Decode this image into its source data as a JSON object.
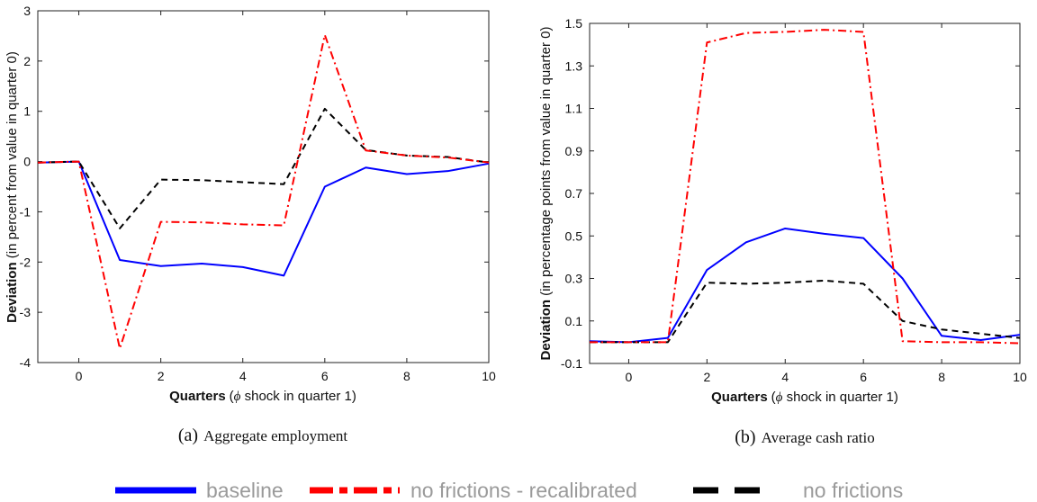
{
  "charts": [
    {
      "id": "a",
      "caption_letter": "(a)",
      "caption_text": "Aggregate employment",
      "ylabel_bold": "Deviation",
      "ylabel_rest": " (in percent from value in quarter 0)",
      "xlabel_bold": "Quarters",
      "xlabel_rest": " shock in quarter 1)",
      "xlabel_paren": "(",
      "xlabel_symbol": "ϕ",
      "xticks": [
        "0",
        "2",
        "4",
        "6",
        "8",
        "10"
      ],
      "yticks": [
        "3",
        "2",
        "1",
        "0",
        "-1",
        "-2",
        "-3",
        "-4"
      ]
    },
    {
      "id": "b",
      "caption_letter": "(b)",
      "caption_text": "Average cash ratio",
      "ylabel_bold": "Deviation",
      "ylabel_rest": " (in percentage points from value in quarter 0)",
      "xlabel_bold": "Quarters",
      "xlabel_rest": " shock in quarter 1)",
      "xlabel_paren": "(",
      "xlabel_symbol": "ϕ",
      "xticks": [
        "0",
        "2",
        "4",
        "6",
        "8",
        "10"
      ],
      "yticks": [
        "1.5",
        "1.3",
        "1.1",
        "0.9",
        "0.7",
        "0.5",
        "0.3",
        "0.1",
        "-0.1"
      ]
    }
  ],
  "legend": {
    "baseline": "baseline",
    "recal": "no frictions - recalibrated",
    "nofric": "no frictions"
  },
  "colors": {
    "baseline": "#0000ff",
    "recal": "#ff0000",
    "nofric": "#000000",
    "legend_text": "#9a9a9a"
  },
  "chart_data": [
    {
      "type": "line",
      "title": "Aggregate employment",
      "xlabel": "Quarters (ϕ shock in quarter 1)",
      "ylabel": "Deviation (in percent from value in quarter 0)",
      "xlim": [
        -1,
        10
      ],
      "ylim": [
        -4,
        3
      ],
      "x": [
        -1,
        0,
        1,
        2,
        3,
        4,
        5,
        6,
        7,
        8,
        9,
        10
      ],
      "series": [
        {
          "name": "baseline",
          "style": "solid",
          "color": "#0000ff",
          "values": [
            -0.02,
            0.0,
            -1.96,
            -2.08,
            -2.03,
            -2.1,
            -2.27,
            -0.5,
            -0.12,
            -0.25,
            -0.19,
            -0.04
          ]
        },
        {
          "name": "no frictions - recalibrated",
          "style": "dashdot",
          "color": "#ff0000",
          "values": [
            -0.02,
            0.0,
            -3.72,
            -1.2,
            -1.21,
            -1.25,
            -1.27,
            2.52,
            0.22,
            0.12,
            0.08,
            -0.02
          ]
        },
        {
          "name": "no frictions",
          "style": "dashed",
          "color": "#000000",
          "values": [
            -0.02,
            0.0,
            -1.33,
            -0.36,
            -0.37,
            -0.41,
            -0.45,
            1.05,
            0.23,
            0.12,
            0.09,
            -0.02
          ]
        }
      ]
    },
    {
      "type": "line",
      "title": "Average cash ratio",
      "xlabel": "Quarters (ϕ shock in quarter 1)",
      "ylabel": "Deviation (in percentage points from value in quarter 0)",
      "xlim": [
        -1,
        10
      ],
      "ylim": [
        -0.1,
        1.5
      ],
      "x": [
        -1,
        0,
        1,
        2,
        3,
        4,
        5,
        6,
        7,
        8,
        9,
        10
      ],
      "series": [
        {
          "name": "baseline",
          "style": "solid",
          "color": "#0000ff",
          "values": [
            0.005,
            0.0,
            0.02,
            0.34,
            0.47,
            0.535,
            0.51,
            0.49,
            0.3,
            0.03,
            0.01,
            0.035
          ]
        },
        {
          "name": "no frictions - recalibrated",
          "style": "dashdot",
          "color": "#ff0000",
          "values": [
            0.0,
            0.0,
            0.0,
            1.41,
            1.455,
            1.46,
            1.47,
            1.46,
            0.005,
            0.0,
            0.0,
            -0.005
          ]
        },
        {
          "name": "no frictions",
          "style": "dashed",
          "color": "#000000",
          "values": [
            0.0,
            0.0,
            0.0,
            0.28,
            0.275,
            0.28,
            0.29,
            0.275,
            0.1,
            0.06,
            0.04,
            0.02
          ]
        }
      ]
    }
  ]
}
